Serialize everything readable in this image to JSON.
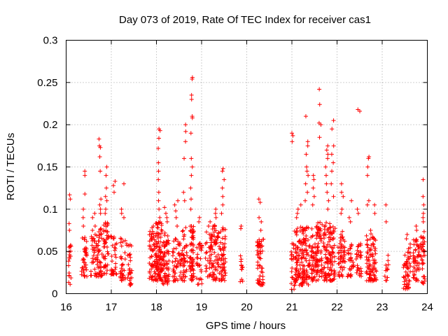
{
  "chart_data": {
    "type": "scatter",
    "title": "Day 073 of 2019, Rate Of TEC Index for receiver cas1",
    "xlabel": "GPS time / hours",
    "ylabel": "ROTI / TECUs",
    "xlim": [
      16,
      24
    ],
    "ylim": [
      0,
      0.3
    ],
    "x_ticks": [
      16,
      17,
      18,
      19,
      20,
      21,
      22,
      23,
      24
    ],
    "x_tick_labels": [
      "16",
      "17",
      "18",
      "19",
      "20",
      "21",
      "22",
      "23",
      "24"
    ],
    "y_ticks": [
      0,
      0.05,
      0.1,
      0.15,
      0.2,
      0.25,
      0.3
    ],
    "y_tick_labels": [
      "0",
      "0.05",
      "0.1",
      "0.15",
      "0.2",
      "0.25",
      "0.3"
    ],
    "grid": true,
    "marker": "+",
    "series_color": "#ff0000",
    "clusters": [
      {
        "x": 16.08,
        "w": 0.03,
        "n": 16,
        "lo": 0.01,
        "hi": 0.06,
        "peaks": [
          0.117,
          0.112,
          0.083,
          0.075,
          0.056,
          0.055,
          0.021
        ]
      },
      {
        "x": 16.4,
        "w": 0.06,
        "n": 36,
        "lo": 0.02,
        "hi": 0.07,
        "peaks": [
          0.145,
          0.14,
          0.118,
          0.1,
          0.09,
          0.08
        ]
      },
      {
        "x": 16.62,
        "w": 0.08,
        "n": 40,
        "lo": 0.02,
        "hi": 0.07,
        "peaks": [
          0.095,
          0.09,
          0.08,
          0.075,
          0.07
        ]
      },
      {
        "x": 16.75,
        "w": 0.05,
        "n": 40,
        "lo": 0.02,
        "hi": 0.08,
        "peaks": [
          0.183,
          0.175,
          0.173,
          0.162,
          0.145,
          0.112,
          0.105,
          0.1,
          0.095
        ]
      },
      {
        "x": 16.88,
        "w": 0.06,
        "n": 46,
        "lo": 0.02,
        "hi": 0.085,
        "peaks": [
          0.15,
          0.14,
          0.125,
          0.115,
          0.11,
          0.1,
          0.095
        ]
      },
      {
        "x": 17.06,
        "w": 0.07,
        "n": 34,
        "lo": 0.02,
        "hi": 0.07,
        "peaks": [
          0.133,
          0.128,
          0.12
        ]
      },
      {
        "x": 17.25,
        "w": 0.06,
        "n": 34,
        "lo": 0.015,
        "hi": 0.07,
        "peaks": [
          0.13,
          0.1,
          0.095,
          0.09
        ]
      },
      {
        "x": 17.4,
        "w": 0.06,
        "n": 30,
        "lo": 0.01,
        "hi": 0.06
      }
    ],
    "cluster_groups": [
      [
        {
          "x": 17.92,
          "w": 0.08,
          "n": 60,
          "lo": 0.015,
          "hi": 0.075,
          "peaks": [
            0.08,
            0.078
          ]
        },
        {
          "x": 18.05,
          "w": 0.07,
          "n": 90,
          "lo": 0.015,
          "hi": 0.085,
          "peaks": [
            0.195,
            0.193,
            0.184,
            0.172,
            0.155,
            0.145,
            0.135,
            0.12,
            0.11,
            0.1,
            0.09
          ]
        },
        {
          "x": 18.2,
          "w": 0.08,
          "n": 70,
          "lo": 0.01,
          "hi": 0.075,
          "peaks": [
            0.102,
            0.095,
            0.09,
            0.085
          ]
        },
        {
          "x": 18.45,
          "w": 0.1,
          "n": 50,
          "lo": 0.015,
          "hi": 0.065,
          "peaks": [
            0.11,
            0.105,
            0.098,
            0.09,
            0.08
          ]
        },
        {
          "x": 18.62,
          "w": 0.06,
          "n": 40,
          "lo": 0.015,
          "hi": 0.08,
          "peaks": [
            0.2,
            0.192,
            0.18,
            0.16,
            0.12,
            0.11
          ]
        },
        {
          "x": 18.78,
          "w": 0.05,
          "n": 60,
          "lo": 0.015,
          "hi": 0.08,
          "peaks": [
            0.256,
            0.254,
            0.235,
            0.23,
            0.21,
            0.208,
            0.19,
            0.16,
            0.15,
            0.14,
            0.125,
            0.112,
            0.1
          ]
        },
        {
          "x": 18.95,
          "w": 0.06,
          "n": 30,
          "lo": 0.01,
          "hi": 0.06,
          "peaks": [
            0.09,
            0.085
          ]
        },
        {
          "x": 19.15,
          "w": 0.08,
          "n": 40,
          "lo": 0.02,
          "hi": 0.075,
          "peaks": [
            0.085,
            0.08
          ]
        },
        {
          "x": 19.32,
          "w": 0.08,
          "n": 60,
          "lo": 0.015,
          "hi": 0.085,
          "peaks": [
            0.1,
            0.095,
            0.09
          ]
        },
        {
          "x": 19.47,
          "w": 0.06,
          "n": 50,
          "lo": 0.015,
          "hi": 0.08,
          "peaks": [
            0.148,
            0.145,
            0.135,
            0.125,
            0.115,
            0.105,
            0.095
          ]
        }
      ],
      [
        {
          "x": 19.88,
          "w": 0.03,
          "n": 12,
          "lo": 0.01,
          "hi": 0.045,
          "peaks": [
            0.08,
            0.077
          ]
        },
        {
          "x": 20.3,
          "w": 0.07,
          "n": 60,
          "lo": 0.01,
          "hi": 0.065,
          "peaks": [
            0.112,
            0.108,
            0.09,
            0.085,
            0.075
          ]
        }
      ],
      [
        {
          "x": 21.02,
          "w": 0.04,
          "n": 20,
          "lo": 0.005,
          "hi": 0.06,
          "peaks": [
            0.19,
            0.187,
            0.18
          ]
        },
        {
          "x": 21.15,
          "w": 0.1,
          "n": 90,
          "lo": 0.01,
          "hi": 0.08,
          "peaks": [
            0.105,
            0.1,
            0.095,
            0.09
          ]
        },
        {
          "x": 21.32,
          "w": 0.08,
          "n": 70,
          "lo": 0.01,
          "hi": 0.08,
          "peaks": [
            0.21,
            0.18,
            0.175,
            0.165,
            0.15,
            0.145,
            0.14,
            0.13,
            0.12,
            0.11
          ]
        },
        {
          "x": 21.5,
          "w": 0.08,
          "n": 70,
          "lo": 0.015,
          "hi": 0.085,
          "peaks": [
            0.14,
            0.135,
            0.125,
            0.115,
            0.105
          ]
        },
        {
          "x": 21.62,
          "w": 0.05,
          "n": 40,
          "lo": 0.02,
          "hi": 0.085,
          "peaks": [
            0.242,
            0.224,
            0.202,
            0.2,
            0.185
          ]
        },
        {
          "x": 21.78,
          "w": 0.08,
          "n": 70,
          "lo": 0.015,
          "hi": 0.085,
          "peaks": [
            0.175,
            0.17,
            0.165,
            0.16,
            0.15,
            0.14,
            0.13,
            0.12,
            0.11,
            0.1
          ]
        },
        {
          "x": 21.9,
          "w": 0.06,
          "n": 50,
          "lo": 0.015,
          "hi": 0.08,
          "peaks": [
            0.205,
            0.195,
            0.175,
            0.165,
            0.155,
            0.145,
            0.13,
            0.115
          ]
        },
        {
          "x": 22.1,
          "w": 0.08,
          "n": 50,
          "lo": 0.02,
          "hi": 0.075,
          "peaks": [
            0.13,
            0.12,
            0.115,
            0.1,
            0.095
          ]
        },
        {
          "x": 22.3,
          "w": 0.07,
          "n": 30,
          "lo": 0.02,
          "hi": 0.06,
          "peaks": [
            0.11,
            0.09,
            0.085
          ]
        },
        {
          "x": 22.48,
          "w": 0.06,
          "n": 30,
          "lo": 0.02,
          "hi": 0.06,
          "peaks": [
            0.218,
            0.216,
            0.1,
            0.095
          ]
        },
        {
          "x": 22.7,
          "w": 0.06,
          "n": 50,
          "lo": 0.015,
          "hi": 0.075,
          "peaks": [
            0.162,
            0.16,
            0.15,
            0.14,
            0.11,
            0.105
          ]
        },
        {
          "x": 22.82,
          "w": 0.05,
          "n": 40,
          "lo": 0.015,
          "hi": 0.07,
          "peaks": [
            0.105,
            0.095
          ]
        },
        {
          "x": 23.1,
          "w": 0.05,
          "n": 12,
          "lo": 0.015,
          "hi": 0.05,
          "peaks": [
            0.105,
            0.085
          ]
        }
      ],
      [
        {
          "x": 23.55,
          "w": 0.08,
          "n": 50,
          "lo": 0.005,
          "hi": 0.06,
          "peaks": [
            0.07,
            0.065
          ]
        },
        {
          "x": 23.75,
          "w": 0.07,
          "n": 50,
          "lo": 0.015,
          "hi": 0.065,
          "peaks": [
            0.08,
            0.075
          ]
        },
        {
          "x": 23.9,
          "w": 0.05,
          "n": 40,
          "lo": 0.01,
          "hi": 0.075,
          "peaks": [
            0.135,
            0.115,
            0.105,
            0.095,
            0.09,
            0.085
          ]
        }
      ]
    ]
  }
}
